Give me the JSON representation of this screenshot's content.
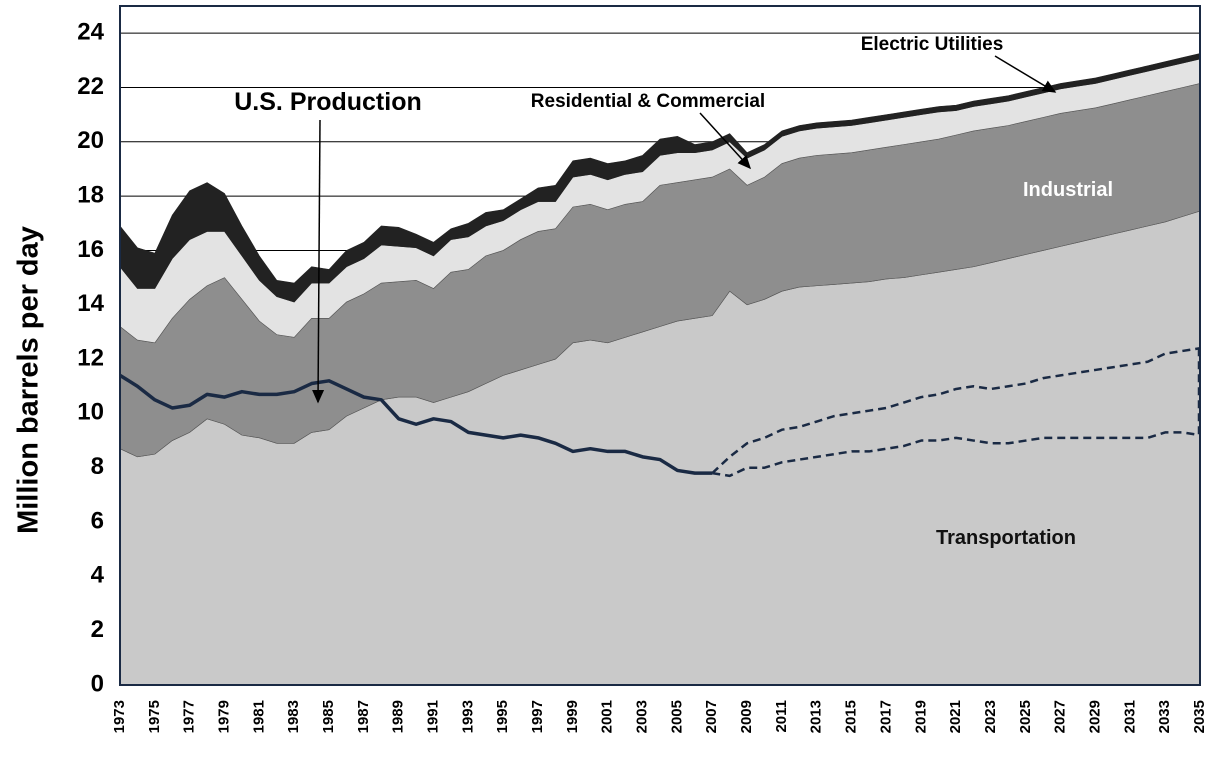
{
  "chart_data": {
    "type": "stacked_area",
    "y_label": "Million barrels per day",
    "x": [
      1973,
      1974,
      1975,
      1976,
      1977,
      1978,
      1979,
      1980,
      1981,
      1982,
      1983,
      1984,
      1985,
      1986,
      1987,
      1988,
      1989,
      1990,
      1991,
      1992,
      1993,
      1994,
      1995,
      1996,
      1997,
      1998,
      1999,
      2000,
      2001,
      2002,
      2003,
      2004,
      2005,
      2006,
      2007,
      2008,
      2009,
      2010,
      2011,
      2012,
      2013,
      2014,
      2015,
      2016,
      2017,
      2018,
      2019,
      2020,
      2021,
      2022,
      2023,
      2024,
      2025,
      2026,
      2027,
      2028,
      2029,
      2030,
      2031,
      2032,
      2033,
      2034,
      2035
    ],
    "xlim": [
      1973,
      2035
    ],
    "xticks": [
      1973,
      1975,
      1977,
      1979,
      1981,
      1983,
      1985,
      1987,
      1989,
      1991,
      1993,
      1995,
      1997,
      1999,
      2001,
      2003,
      2005,
      2007,
      2009,
      2011,
      2013,
      2015,
      2017,
      2019,
      2021,
      2023,
      2025,
      2027,
      2029,
      2031,
      2033,
      2035
    ],
    "ylim": [
      0,
      25
    ],
    "yticks": [
      0,
      2,
      4,
      6,
      8,
      10,
      12,
      14,
      16,
      18,
      20,
      22,
      24
    ],
    "grid": true,
    "series": [
      {
        "name": "Transportation",
        "color": "#c9c9c9",
        "values": [
          8.7,
          8.4,
          8.5,
          9.0,
          9.3,
          9.8,
          9.6,
          9.2,
          9.1,
          8.9,
          8.9,
          9.3,
          9.4,
          9.9,
          10.2,
          10.5,
          10.6,
          10.6,
          10.4,
          10.6,
          10.8,
          11.1,
          11.4,
          11.6,
          11.8,
          12.0,
          12.6,
          12.7,
          12.6,
          12.8,
          13.0,
          13.2,
          13.4,
          13.5,
          13.6,
          14.5,
          14.0,
          14.2,
          14.5,
          14.65,
          14.7,
          14.75,
          14.8,
          14.85,
          14.95,
          15.0,
          15.1,
          15.2,
          15.3,
          15.4,
          15.55,
          15.7,
          15.85,
          16.0,
          16.15,
          16.3,
          16.45,
          16.6,
          16.75,
          16.9,
          17.05,
          17.25,
          17.45
        ]
      },
      {
        "name": "Industrial",
        "color": "#8e8e8e",
        "values": [
          4.5,
          4.3,
          4.1,
          4.5,
          4.9,
          4.9,
          5.4,
          5.0,
          4.3,
          4.0,
          3.9,
          4.2,
          4.1,
          4.2,
          4.2,
          4.3,
          4.25,
          4.3,
          4.2,
          4.6,
          4.5,
          4.7,
          4.6,
          4.8,
          4.9,
          4.8,
          5.0,
          5.0,
          4.9,
          4.9,
          4.8,
          5.2,
          5.1,
          5.1,
          5.1,
          4.5,
          4.4,
          4.5,
          4.7,
          4.75,
          4.8,
          4.8,
          4.8,
          4.85,
          4.85,
          4.9,
          4.9,
          4.9,
          4.95,
          5.0,
          4.95,
          4.9,
          4.9,
          4.9,
          4.9,
          4.85,
          4.8,
          4.8,
          4.8,
          4.8,
          4.8,
          4.75,
          4.7
        ]
      },
      {
        "name": "Residential & Commercial",
        "color": "#e3e3e3",
        "values": [
          2.2,
          1.9,
          2.0,
          2.2,
          2.2,
          2.0,
          1.7,
          1.6,
          1.5,
          1.4,
          1.3,
          1.3,
          1.3,
          1.3,
          1.3,
          1.4,
          1.3,
          1.2,
          1.2,
          1.2,
          1.2,
          1.1,
          1.1,
          1.1,
          1.1,
          1.0,
          1.1,
          1.1,
          1.1,
          1.1,
          1.1,
          1.1,
          1.1,
          1.0,
          1.0,
          1.0,
          1.0,
          1.0,
          1.0,
          1.0,
          1.0,
          1.0,
          1.0,
          1.0,
          1.0,
          1.0,
          1.0,
          1.0,
          0.9,
          0.9,
          0.9,
          0.9,
          0.9,
          0.9,
          0.9,
          0.9,
          0.9,
          0.9,
          0.9,
          0.9,
          0.9,
          0.9,
          0.9
        ]
      },
      {
        "name": "Electric Utilities",
        "color": "#222222",
        "values": [
          1.5,
          1.5,
          1.3,
          1.6,
          1.8,
          1.8,
          1.4,
          1.1,
          0.9,
          0.6,
          0.7,
          0.6,
          0.5,
          0.6,
          0.6,
          0.7,
          0.7,
          0.5,
          0.5,
          0.4,
          0.5,
          0.5,
          0.4,
          0.4,
          0.5,
          0.6,
          0.6,
          0.6,
          0.6,
          0.5,
          0.6,
          0.6,
          0.6,
          0.3,
          0.3,
          0.3,
          0.2,
          0.2,
          0.2,
          0.2,
          0.2,
          0.2,
          0.2,
          0.2,
          0.2,
          0.2,
          0.2,
          0.2,
          0.2,
          0.2,
          0.2,
          0.2,
          0.2,
          0.2,
          0.2,
          0.2,
          0.2,
          0.2,
          0.2,
          0.2,
          0.2,
          0.2,
          0.2
        ]
      }
    ],
    "production": {
      "label": "U.S. Production",
      "color": "#1a2a44",
      "values": [
        11.4,
        11.0,
        10.5,
        10.2,
        10.3,
        10.7,
        10.6,
        10.8,
        10.7,
        10.7,
        10.8,
        11.1,
        11.2,
        10.9,
        10.6,
        10.5,
        9.8,
        9.6,
        9.8,
        9.7,
        9.3,
        9.2,
        9.1,
        9.2,
        9.1,
        8.9,
        8.6,
        8.7,
        8.6,
        8.6,
        8.4,
        8.3,
        7.9,
        7.8,
        7.8,
        null,
        null,
        null,
        null,
        null,
        null,
        null,
        null,
        null,
        null,
        null,
        null,
        null,
        null,
        null,
        null,
        null,
        null,
        null,
        null,
        null,
        null,
        null,
        null,
        null,
        null,
        null,
        null
      ],
      "projections": [
        [
          null,
          null,
          null,
          null,
          null,
          null,
          null,
          null,
          null,
          null,
          null,
          null,
          null,
          null,
          null,
          null,
          null,
          null,
          null,
          null,
          null,
          null,
          null,
          null,
          null,
          null,
          null,
          null,
          null,
          null,
          null,
          null,
          null,
          null,
          7.8,
          8.4,
          8.9,
          9.1,
          9.4,
          9.5,
          9.7,
          9.9,
          10.0,
          10.1,
          10.2,
          10.4,
          10.6,
          10.7,
          10.9,
          11.0,
          10.9,
          11.0,
          11.1,
          11.3,
          11.4,
          11.5,
          11.6,
          11.7,
          11.8,
          11.9,
          12.2,
          12.3,
          12.4
        ],
        [
          null,
          null,
          null,
          null,
          null,
          null,
          null,
          null,
          null,
          null,
          null,
          null,
          null,
          null,
          null,
          null,
          null,
          null,
          null,
          null,
          null,
          null,
          null,
          null,
          null,
          null,
          null,
          null,
          null,
          null,
          null,
          null,
          null,
          null,
          7.8,
          7.7,
          8.0,
          8.0,
          8.2,
          8.3,
          8.4,
          8.5,
          8.6,
          8.6,
          8.7,
          8.8,
          9.0,
          9.0,
          9.1,
          9.0,
          8.9,
          8.9,
          9.0,
          9.1,
          9.1,
          9.1,
          9.1,
          9.1,
          9.1,
          9.1,
          9.3,
          9.3,
          9.2
        ]
      ]
    }
  }
}
